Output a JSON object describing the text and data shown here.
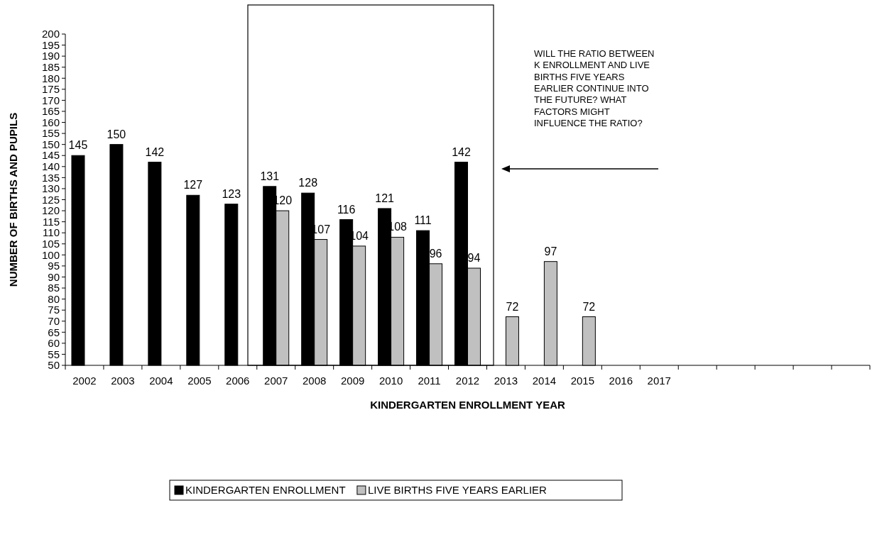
{
  "chart_data": {
    "type": "bar",
    "xlabel": "KINDERGARTEN ENROLLMENT YEAR",
    "ylabel": "NUMBER OF BIRTHS AND PUPILS",
    "categories": [
      "2002",
      "2003",
      "2004",
      "2005",
      "2006",
      "2007",
      "2008",
      "2009",
      "2010",
      "2011",
      "2012",
      "2013",
      "2014",
      "2015",
      "2016",
      "2017",
      null,
      null,
      null,
      null,
      null
    ],
    "series": [
      {
        "name": "KINDERGARTEN ENROLLMENT",
        "color": "#000000",
        "values": [
          145,
          150,
          142,
          127,
          123,
          131,
          128,
          116,
          121,
          111,
          142,
          null,
          null,
          null,
          null,
          null,
          null,
          null,
          null,
          null,
          null
        ]
      },
      {
        "name": "LIVE BIRTHS FIVE YEARS EARLIER",
        "color": "#c0c0c0",
        "values": [
          null,
          null,
          null,
          null,
          null,
          120,
          107,
          104,
          108,
          96,
          94,
          72,
          97,
          72,
          null,
          null,
          null,
          null,
          null,
          null,
          null
        ]
      }
    ],
    "ylim": [
      50,
      200
    ],
    "yticks": [
      50,
      55,
      60,
      65,
      70,
      75,
      80,
      85,
      90,
      95,
      100,
      105,
      110,
      115,
      120,
      125,
      130,
      135,
      140,
      145,
      150,
      155,
      160,
      165,
      170,
      175,
      180,
      185,
      190,
      195,
      200
    ],
    "data_labels": true,
    "legend": "bottom",
    "grid": false,
    "annotations": [
      "WILL THE RATIO BETWEEN K ENROLLMENT AND LIVE BIRTHS FIVE YEARS EARLIER CONTINUE INTO THE FUTURE?  WHAT FACTORS MIGHT INFLUENCE THE RATIO?"
    ]
  }
}
